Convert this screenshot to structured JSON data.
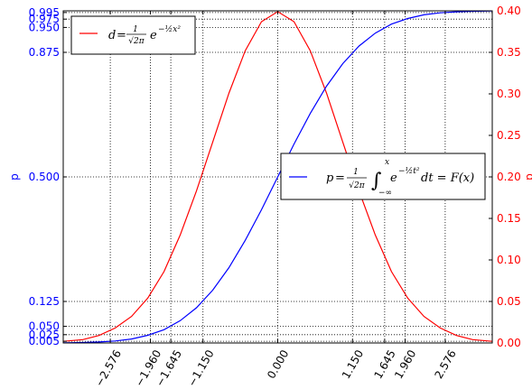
{
  "chart_data": {
    "type": "line",
    "x_range": [
      -3.3,
      3.3
    ],
    "x_ticks": [
      "−2.576",
      "−1.960",
      "−1.645",
      "−1.150",
      "0.000",
      "1.150",
      "1.645",
      "1.960",
      "2.576"
    ],
    "x_tick_values": [
      -2.576,
      -1.96,
      -1.645,
      -1.15,
      0.0,
      1.15,
      1.645,
      1.96,
      2.576
    ],
    "y_left": {
      "label": "p",
      "range": [
        0,
        1
      ],
      "tick_values": [
        0.005,
        0.025,
        0.05,
        0.125,
        0.5,
        0.875,
        0.95,
        0.975,
        0.995
      ],
      "tick_labels": [
        "0.005",
        "0.025",
        "0.050",
        "0.125",
        "0.500",
        "0.875",
        "0.950",
        "0.975",
        "0.995"
      ],
      "color": "#0000ff"
    },
    "y_right": {
      "label": "d",
      "range": [
        0,
        0.4
      ],
      "tick_values": [
        0.0,
        0.05,
        0.1,
        0.15,
        0.2,
        0.25,
        0.3,
        0.35,
        0.4
      ],
      "tick_labels": [
        "0.00",
        "0.05",
        "0.10",
        "0.15",
        "0.20",
        "0.25",
        "0.30",
        "0.35",
        "0.40"
      ],
      "color": "#ff0000"
    },
    "grid": true,
    "series": [
      {
        "axis": "right",
        "color": "#ff0000",
        "x": [
          -3.3,
          -3.0,
          -2.75,
          -2.5,
          -2.25,
          -2.0,
          -1.75,
          -1.5,
          -1.25,
          -1.0,
          -0.75,
          -0.5,
          -0.25,
          0.0,
          0.25,
          0.5,
          0.75,
          1.0,
          1.25,
          1.5,
          1.75,
          2.0,
          2.25,
          2.5,
          2.75,
          3.0,
          3.3
        ],
        "y": [
          0.002,
          0.004,
          0.009,
          0.018,
          0.032,
          0.054,
          0.086,
          0.13,
          0.183,
          0.242,
          0.301,
          0.352,
          0.387,
          0.399,
          0.387,
          0.352,
          0.301,
          0.242,
          0.183,
          0.13,
          0.086,
          0.054,
          0.032,
          0.018,
          0.009,
          0.004,
          0.002
        ]
      },
      {
        "axis": "left",
        "color": "#0000ff",
        "x": [
          -3.3,
          -3.0,
          -2.75,
          -2.5,
          -2.25,
          -2.0,
          -1.75,
          -1.5,
          -1.25,
          -1.0,
          -0.75,
          -0.5,
          -0.25,
          0.0,
          0.25,
          0.5,
          0.75,
          1.0,
          1.25,
          1.5,
          1.75,
          2.0,
          2.25,
          2.5,
          2.75,
          3.0,
          3.3
        ],
        "y": [
          0.0005,
          0.0013,
          0.003,
          0.006,
          0.012,
          0.023,
          0.04,
          0.067,
          0.106,
          0.159,
          0.227,
          0.309,
          0.401,
          0.5,
          0.599,
          0.691,
          0.773,
          0.841,
          0.894,
          0.933,
          0.96,
          0.977,
          0.988,
          0.994,
          0.997,
          0.9987,
          0.9995
        ]
      }
    ],
    "legends": [
      {
        "position": "top-left",
        "color": "#ff0000",
        "formula_lhs": "d",
        "formula_rhs": "e",
        "formula_exp": "−½x²",
        "frac_num": "1",
        "frac_den": "√2π"
      },
      {
        "position": "center-right",
        "color": "#0000ff",
        "formula_lhs": "p",
        "formula_rhs": "e",
        "formula_exp": "−½t²",
        "frac_num": "1",
        "frac_den": "√2π",
        "integral": "∫",
        "int_upper": "x",
        "int_lower": "−∞",
        "tail": "dt = F(x)"
      }
    ]
  }
}
